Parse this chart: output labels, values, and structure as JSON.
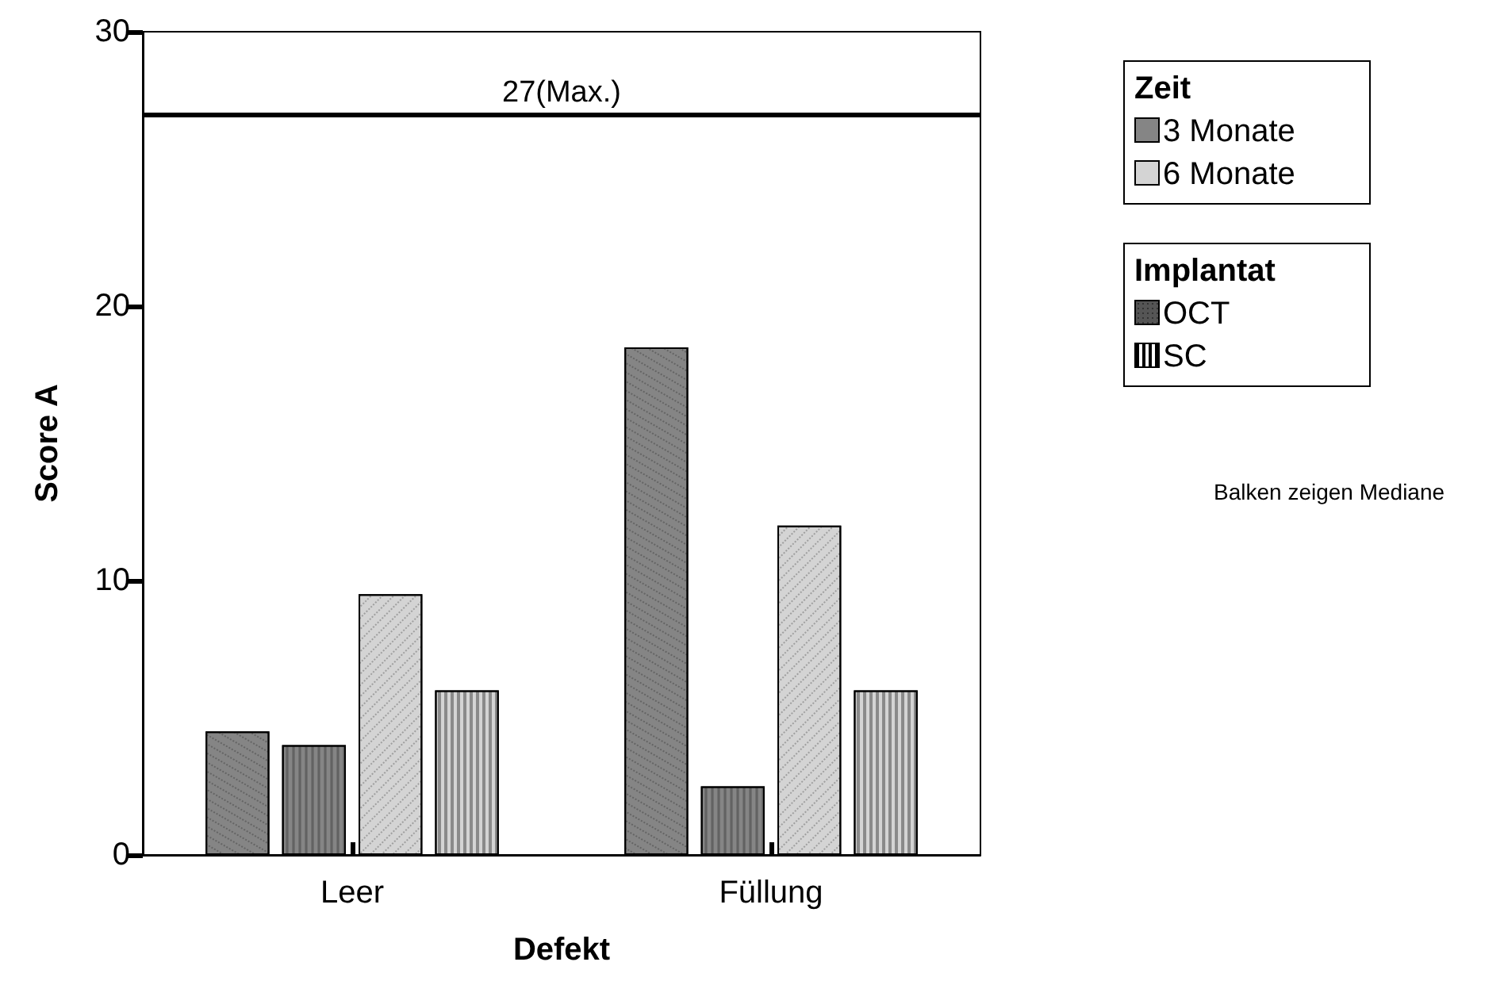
{
  "chart_data": {
    "type": "bar",
    "xlabel": "Defekt",
    "ylabel": "Score A",
    "categories": [
      "Leer",
      "Füllung"
    ],
    "series": [
      {
        "color": "#858585",
        "values": [
          4.5,
          18.5
        ]
      },
      {
        "color": "#858585",
        "values": [
          4.0,
          2.5
        ]
      },
      {
        "color": "#d4d4d4",
        "values": [
          9.5,
          12.0
        ]
      },
      {
        "color": "#d4d4d4",
        "values": [
          6.0,
          6.0
        ]
      }
    ],
    "ylim": [
      0,
      30
    ],
    "yticks": [
      0,
      10,
      20,
      30
    ],
    "grid": false,
    "ref_lines": [
      {
        "axis": "y",
        "value": 27,
        "label": "27(Max.)",
        "color": "#000000"
      }
    ],
    "annotations": [
      "Zeit",
      "3 Monate",
      "6 Monate",
      "Implantat",
      "OCT",
      "SC",
      "Balken zeigen Mediane"
    ]
  }
}
